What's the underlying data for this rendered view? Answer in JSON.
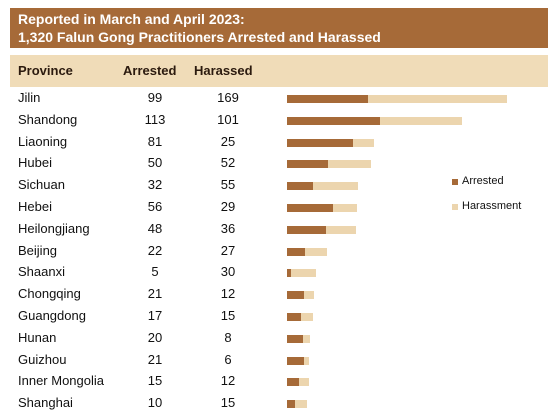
{
  "chart_data": {
    "type": "bar",
    "title": "Reported in March and April 2023:",
    "subtitle": "1,320 Falun Gong Practitioners Arrested and Harassed",
    "columns": [
      "Province",
      "Arrested",
      "Harassed"
    ],
    "legend": [
      "Arrested",
      "Harassment"
    ],
    "legend_position": "right",
    "stacked": true,
    "orientation": "horizontal",
    "categories": [
      "Jilin",
      "Shandong",
      "Liaoning",
      "Hubei",
      "Sichuan",
      "Hebei",
      "Heilongjiang",
      "Beijing",
      "Shaanxi",
      "Chongqing",
      "Guangdong",
      "Hunan",
      "Guizhou",
      "Inner Mongolia",
      "Shanghai"
    ],
    "series": [
      {
        "name": "Arrested",
        "values": [
          99,
          113,
          81,
          50,
          32,
          56,
          48,
          22,
          5,
          21,
          17,
          20,
          21,
          15,
          10
        ]
      },
      {
        "name": "Harassment",
        "values": [
          169,
          101,
          25,
          52,
          55,
          29,
          36,
          27,
          30,
          12,
          15,
          8,
          6,
          12,
          15
        ]
      }
    ]
  },
  "colors": {
    "arrested": "#a66a38",
    "harassment": "#ecd5ae",
    "title_bg": "#a66a38",
    "header_bg": "#f0dcb8"
  }
}
